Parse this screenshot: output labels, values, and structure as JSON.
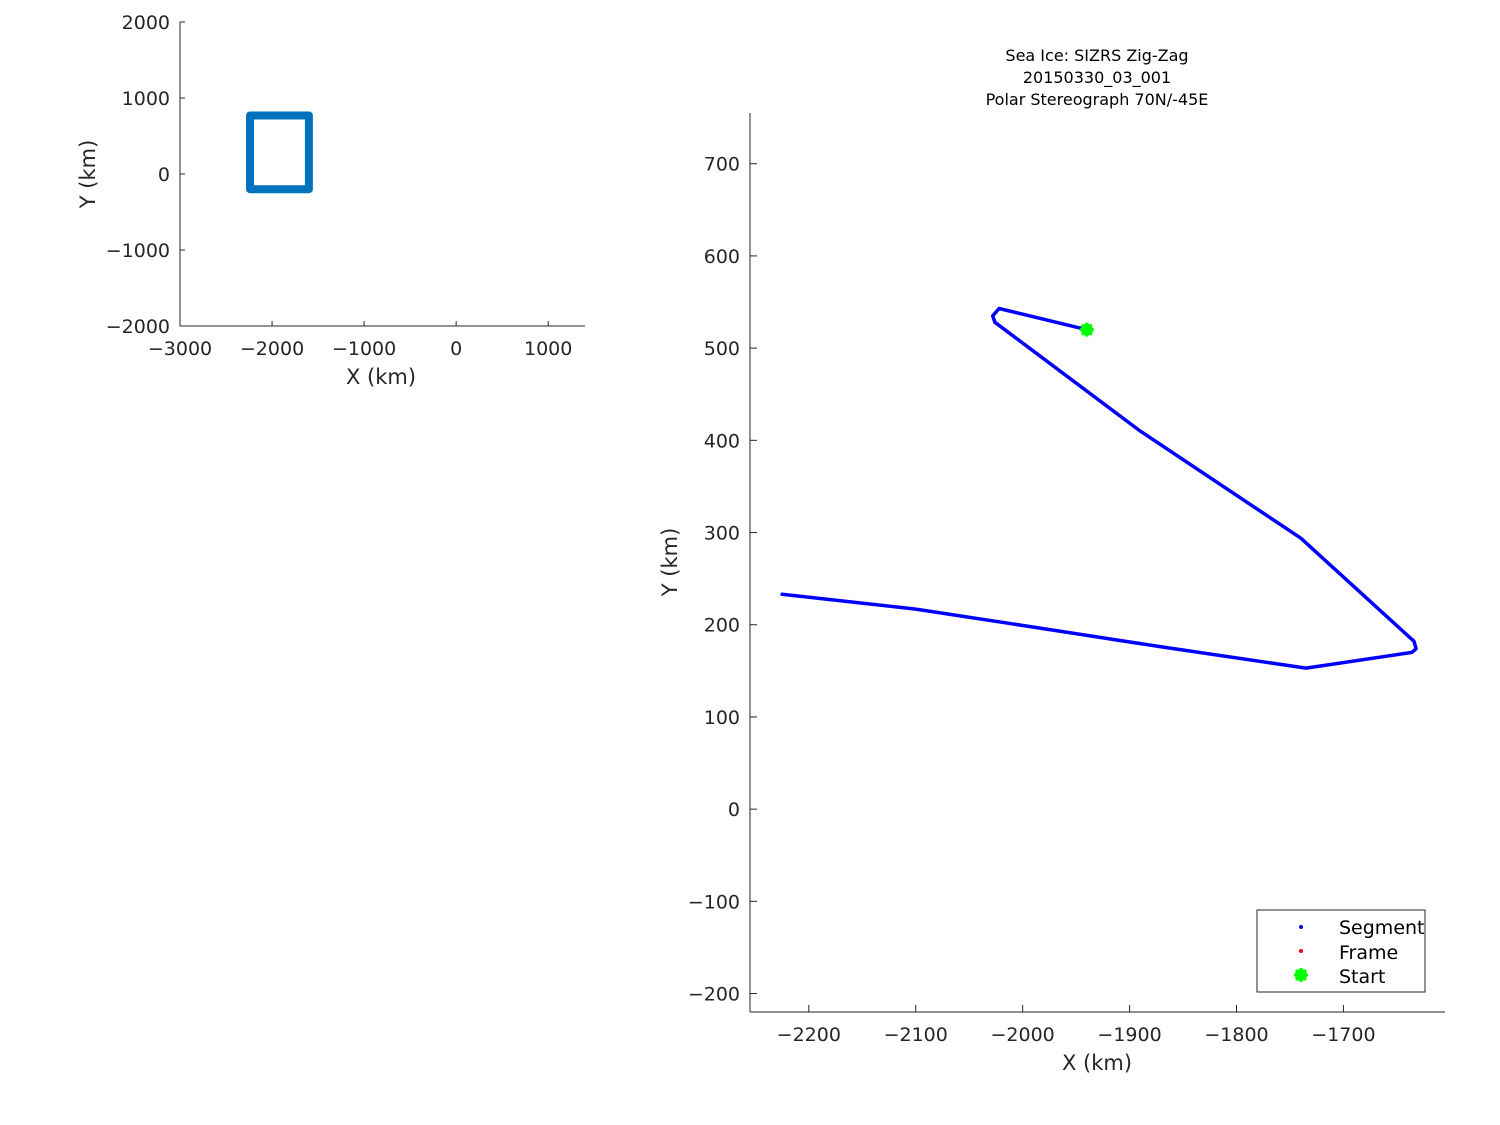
{
  "chart_data": [
    {
      "type": "line",
      "xlabel": "X (km)",
      "ylabel": "Y (km)",
      "xlim": [
        -3000,
        1400
      ],
      "ylim": [
        -2000,
        2000
      ],
      "xticks": [
        -3000,
        -2000,
        -1000,
        0,
        1000
      ],
      "yticks": [
        -2000,
        -1000,
        0,
        1000,
        2000
      ],
      "xticklabels": [
        "−3000",
        "−2000",
        "−1000",
        "0",
        "1000"
      ],
      "yticklabels": [
        "−2000",
        "−1000",
        "0",
        "1000",
        "2000"
      ],
      "grid": false,
      "series": [
        {
          "color": "#0072bd",
          "x": [
            -2240,
            -2240,
            -1600,
            -1600,
            -2240,
            -2240
          ],
          "y": [
            -180,
            770,
            770,
            -200,
            -200,
            -150
          ]
        }
      ]
    },
    {
      "type": "line",
      "title": [
        "Sea Ice: SIZRS Zig-Zag",
        "20150330_03_001",
        "Polar Stereograph 70N/-45E"
      ],
      "xlabel": "X (km)",
      "ylabel": "Y (km)",
      "xlim": [
        -2255,
        -1605
      ],
      "ylim": [
        -220,
        755
      ],
      "xticks": [
        -2200,
        -2100,
        -2000,
        -1900,
        -1800,
        -1700
      ],
      "yticks": [
        -200,
        -100,
        0,
        100,
        200,
        300,
        400,
        500,
        600,
        700
      ],
      "xticklabels": [
        "−2200",
        "−2100",
        "−2000",
        "−1900",
        "−1800",
        "−1700"
      ],
      "yticklabels": [
        "−200",
        "−100",
        "0",
        "100",
        "200",
        "300",
        "400",
        "500",
        "600",
        "700"
      ],
      "grid": false,
      "legend": "bottom-right",
      "series": [
        {
          "name": "Segment",
          "color": "#0000ff",
          "x": [
            -1940,
            -2022,
            -2028,
            -2026,
            -1890,
            -1740,
            -1634,
            -1632,
            -1636,
            -1735,
            -1870,
            -2010,
            -2100,
            -2225
          ],
          "y": [
            520,
            543,
            535,
            528,
            410,
            294,
            182,
            174,
            170,
            153,
            176,
            201,
            217,
            233
          ]
        },
        {
          "name": "Frame",
          "color": "#ff0000",
          "x": [],
          "y": []
        },
        {
          "name": "Start",
          "color": "#00ff00",
          "x": [
            -1940
          ],
          "y": [
            520
          ]
        }
      ]
    }
  ]
}
